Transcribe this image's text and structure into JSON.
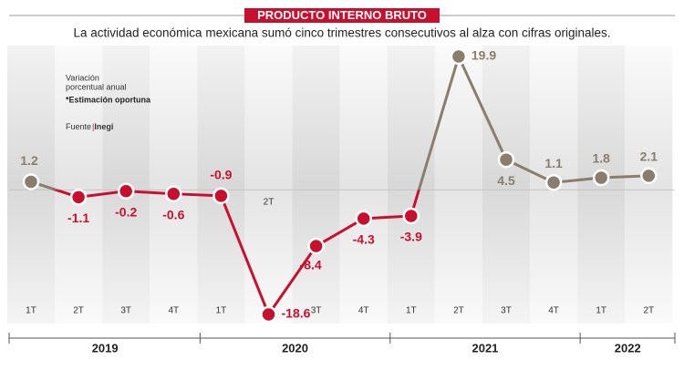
{
  "chart_data": {
    "type": "line",
    "title": "PRODUCTO INTERNO BRUTO",
    "subtitle": "La actividad económica mexicana sumó cinco trimestres consecutivos al alza con cifras originales.",
    "annotations": [
      "Variación",
      "porcentual anual",
      "*Estimación oportuna"
    ],
    "source_label": "Fuente",
    "source": "Inegi",
    "groups": [
      {
        "name": "2019",
        "categories": [
          "1T",
          "2T",
          "3T",
          "4T"
        ]
      },
      {
        "name": "2020",
        "categories": [
          "1T",
          "2T",
          "3T",
          "4T"
        ]
      },
      {
        "name": "2021",
        "categories": [
          "1T",
          "2T",
          "3T",
          "4T"
        ]
      },
      {
        "name": "2022",
        "categories": [
          "1T",
          "2T"
        ]
      }
    ],
    "values": [
      1.2,
      -1.1,
      -0.2,
      -0.6,
      -0.9,
      -18.6,
      -8.4,
      -4.3,
      -3.9,
      19.9,
      4.5,
      1.1,
      1.8,
      2.1
    ],
    "positive_color": "#8b7d6b",
    "negative_color": "#c8102e"
  }
}
